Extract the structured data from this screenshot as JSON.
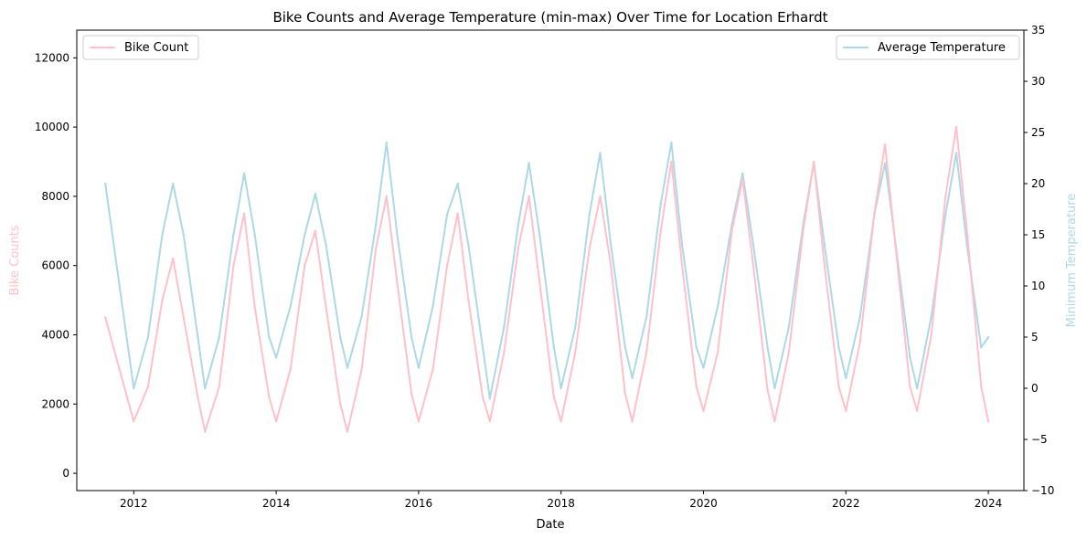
{
  "chart_data": {
    "type": "line",
    "title": "Bike Counts and Average Temperature (min-max) Over Time for Location Erhardt",
    "xlabel": "Date",
    "ylabel_left": "Bike Counts",
    "ylabel_right": "Minimum Temperature",
    "xlim": [
      2011.2,
      2024.5
    ],
    "ylim_left": [
      -500,
      12800
    ],
    "ylim_right": [
      -10,
      35
    ],
    "x_ticks": [
      2012,
      2014,
      2016,
      2018,
      2020,
      2022,
      2024
    ],
    "x_tick_labels": [
      "2012",
      "2014",
      "2016",
      "2018",
      "2020",
      "2022",
      "2024"
    ],
    "y_left_ticks": [
      0,
      2000,
      4000,
      6000,
      8000,
      10000,
      12000
    ],
    "y_left_tick_labels": [
      "0",
      "2000",
      "4000",
      "6000",
      "8000",
      "10000",
      "12000"
    ],
    "y_right_ticks": [
      -10,
      -5,
      0,
      5,
      10,
      15,
      20,
      25,
      30,
      35
    ],
    "y_right_tick_labels": [
      "−10",
      "−5",
      "0",
      "5",
      "10",
      "15",
      "20",
      "25",
      "30",
      "35"
    ],
    "grid": false,
    "series": [
      {
        "name": "Bike Count",
        "axis": "left",
        "color": "#FFC0CB",
        "legend_position": "top-left",
        "x": [
          2011.6,
          2011.8,
          2012.0,
          2012.2,
          2012.4,
          2012.55,
          2012.7,
          2012.9,
          2013.0,
          2013.2,
          2013.4,
          2013.55,
          2013.7,
          2013.9,
          2014.0,
          2014.2,
          2014.4,
          2014.55,
          2014.7,
          2014.9,
          2015.0,
          2015.2,
          2015.4,
          2015.55,
          2015.7,
          2015.9,
          2016.0,
          2016.2,
          2016.4,
          2016.55,
          2016.7,
          2016.9,
          2017.0,
          2017.2,
          2017.4,
          2017.55,
          2017.7,
          2017.9,
          2018.0,
          2018.2,
          2018.4,
          2018.55,
          2018.7,
          2018.9,
          2019.0,
          2019.2,
          2019.4,
          2019.55,
          2019.7,
          2019.9,
          2020.0,
          2020.2,
          2020.4,
          2020.55,
          2020.7,
          2020.9,
          2021.0,
          2021.2,
          2021.4,
          2021.55,
          2021.7,
          2021.9,
          2022.0,
          2022.2,
          2022.4,
          2022.55,
          2022.7,
          2022.9,
          2023.0,
          2023.2,
          2023.4,
          2023.55,
          2023.7,
          2023.9,
          2024.0
        ],
        "values": [
          4500,
          3000,
          1500,
          2500,
          5000,
          6200,
          4500,
          2200,
          1200,
          2500,
          6000,
          7500,
          4800,
          2200,
          1500,
          3000,
          6000,
          7000,
          4800,
          2000,
          1200,
          3000,
          6500,
          8000,
          5500,
          2300,
          1500,
          3000,
          6000,
          7500,
          5000,
          2200,
          1500,
          3500,
          6500,
          8000,
          5500,
          2200,
          1500,
          3500,
          6500,
          8000,
          6000,
          2300,
          1500,
          3500,
          7000,
          9000,
          6000,
          2500,
          1800,
          3500,
          7000,
          8500,
          6000,
          2400,
          1500,
          3500,
          7000,
          9000,
          6000,
          2500,
          1800,
          3800,
          7500,
          9500,
          6500,
          2500,
          1800,
          4000,
          8000,
          10000,
          7000,
          2500,
          1500
        ]
      },
      {
        "name": "Average Temperature",
        "axis": "right",
        "color": "#ADD8E6",
        "legend_position": "top-right",
        "x": [
          2011.6,
          2011.8,
          2012.0,
          2012.2,
          2012.4,
          2012.55,
          2012.7,
          2012.9,
          2013.0,
          2013.2,
          2013.4,
          2013.55,
          2013.7,
          2013.9,
          2014.0,
          2014.2,
          2014.4,
          2014.55,
          2014.7,
          2014.9,
          2015.0,
          2015.2,
          2015.4,
          2015.55,
          2015.7,
          2015.9,
          2016.0,
          2016.2,
          2016.4,
          2016.55,
          2016.7,
          2016.9,
          2017.0,
          2017.2,
          2017.4,
          2017.55,
          2017.7,
          2017.9,
          2018.0,
          2018.2,
          2018.4,
          2018.55,
          2018.7,
          2018.9,
          2019.0,
          2019.2,
          2019.4,
          2019.55,
          2019.7,
          2019.9,
          2020.0,
          2020.2,
          2020.4,
          2020.55,
          2020.7,
          2020.9,
          2021.0,
          2021.2,
          2021.4,
          2021.55,
          2021.7,
          2021.9,
          2022.0,
          2022.2,
          2022.4,
          2022.55,
          2022.7,
          2022.9,
          2023.0,
          2023.2,
          2023.4,
          2023.55,
          2023.7,
          2023.9,
          2024.0
        ],
        "values": [
          20,
          10,
          0,
          5,
          15,
          20,
          15,
          5,
          0,
          5,
          15,
          21,
          15,
          5,
          3,
          8,
          15,
          19,
          14,
          5,
          2,
          7,
          16,
          24,
          15,
          5,
          2,
          8,
          17,
          20,
          14,
          4,
          -1,
          6,
          16,
          22,
          15,
          4,
          0,
          6,
          17,
          23,
          14,
          4,
          1,
          7,
          18,
          24,
          14,
          4,
          2,
          8,
          16,
          21,
          14,
          4,
          0,
          6,
          16,
          22,
          14,
          4,
          1,
          7,
          17,
          22,
          14,
          3,
          0,
          7,
          17,
          23,
          14,
          4,
          5
        ]
      }
    ]
  }
}
